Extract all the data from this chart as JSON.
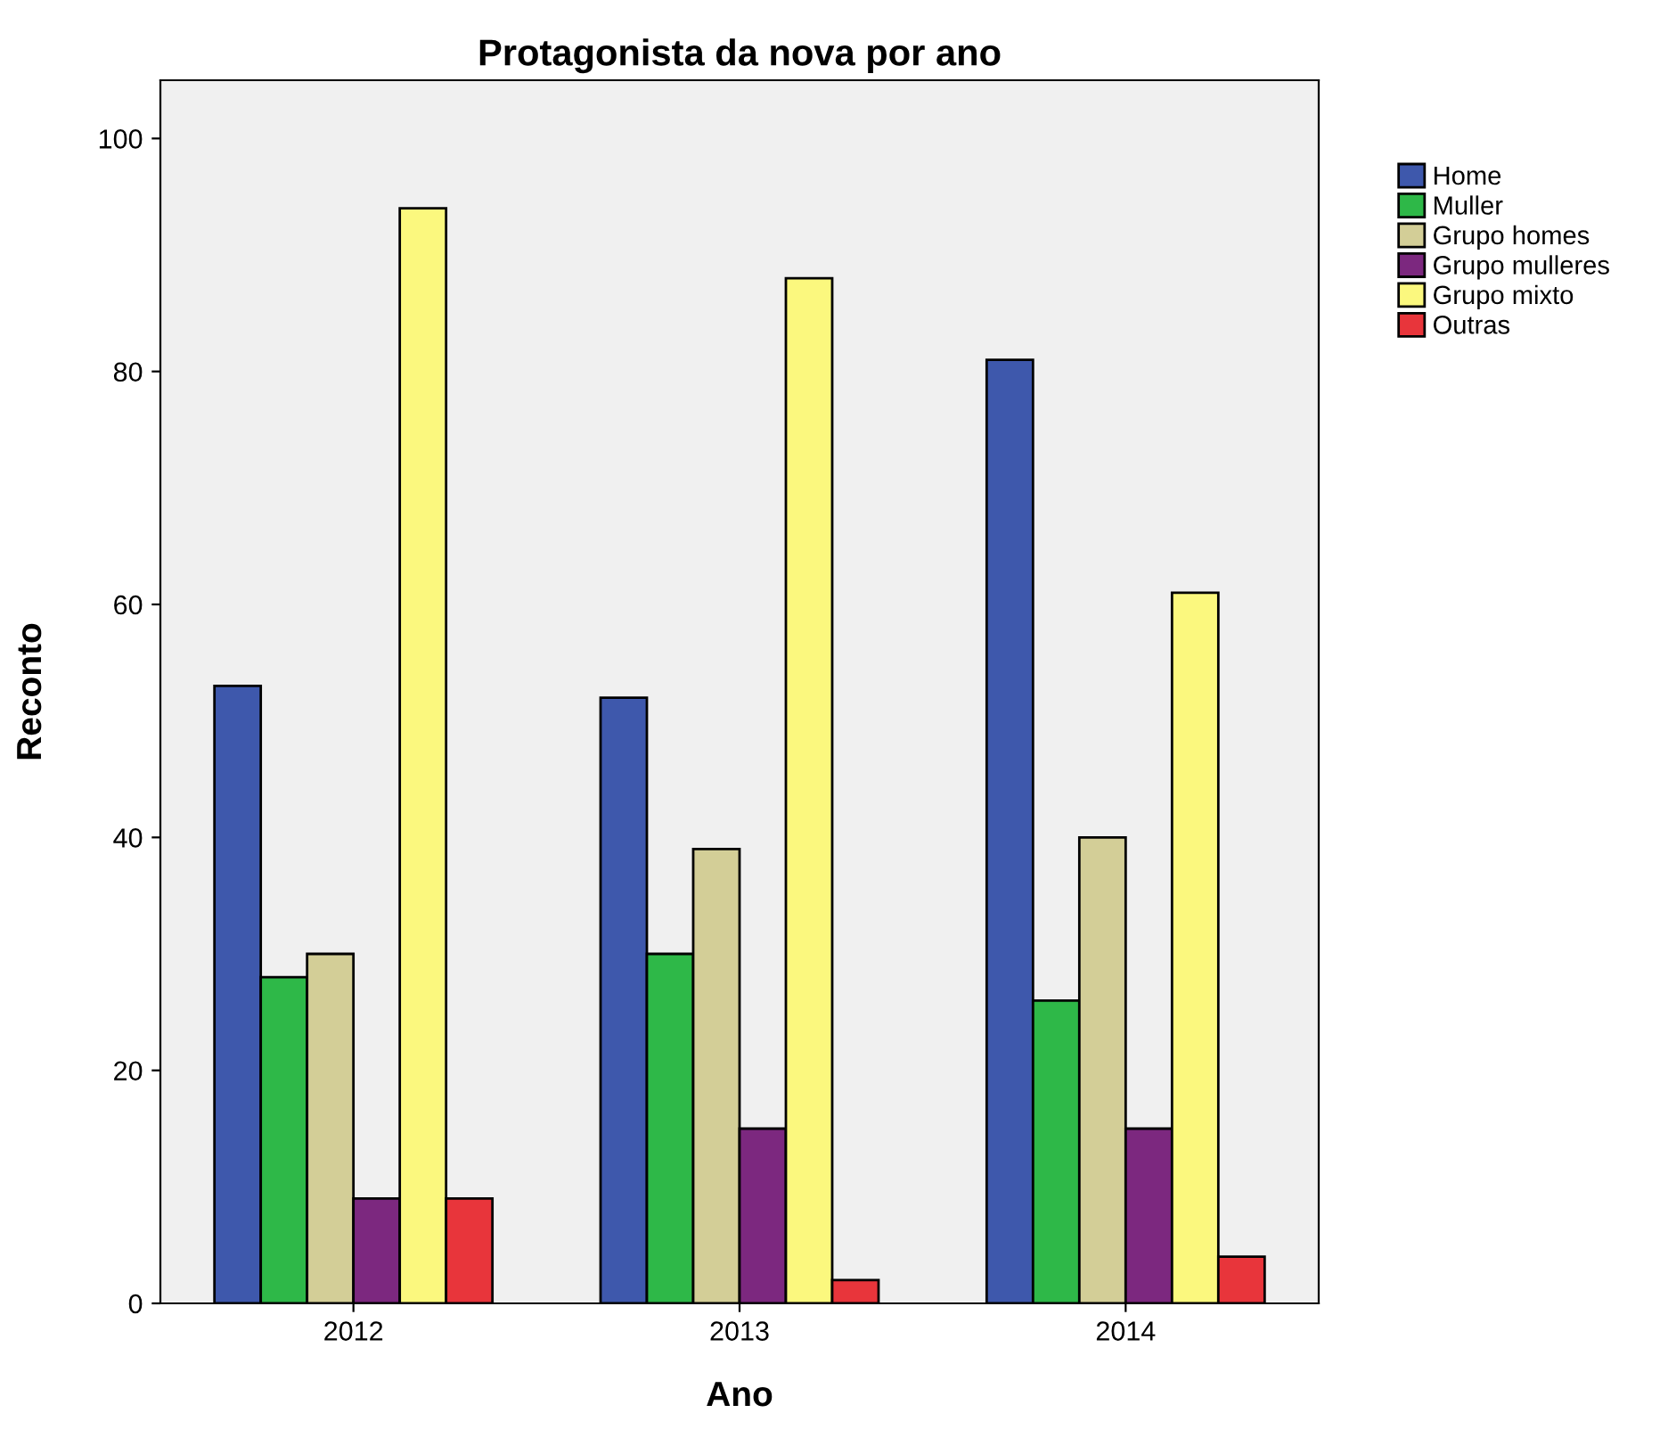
{
  "chart_data": {
    "type": "bar",
    "title": "Protagonista da nova por ano",
    "xlabel": "Ano",
    "ylabel": "Reconto",
    "categories": [
      "2012",
      "2013",
      "2014"
    ],
    "series": [
      {
        "name": "Home",
        "color": "#3e58ac",
        "values": [
          53,
          52,
          81
        ]
      },
      {
        "name": "Muller",
        "color": "#2eb848",
        "values": [
          28,
          30,
          26
        ]
      },
      {
        "name": "Grupo homes",
        "color": "#d3ce97",
        "values": [
          30,
          39,
          40
        ]
      },
      {
        "name": "Grupo mulleres",
        "color": "#7c287f",
        "values": [
          9,
          15,
          15
        ]
      },
      {
        "name": "Grupo mixto",
        "color": "#fbf87e",
        "values": [
          94,
          88,
          61
        ]
      },
      {
        "name": "Outras",
        "color": "#e8353b",
        "values": [
          9,
          2,
          4
        ]
      }
    ],
    "ylim": [
      0,
      105
    ],
    "yticks": [
      0,
      20,
      40,
      60,
      80,
      100
    ],
    "grid": false,
    "legend": "top right"
  }
}
